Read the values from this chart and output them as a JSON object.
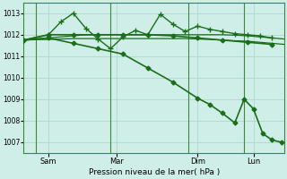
{
  "background_color": "#d0eee8",
  "grid_color": "#b0d8cc",
  "line_color": "#1a6e1a",
  "ylim": [
    1006.5,
    1013.5
  ],
  "yticks": [
    1007,
    1008,
    1009,
    1010,
    1011,
    1012,
    1013
  ],
  "xlabel": "Pression niveau de la mer( hPa )",
  "xtick_labels": [
    "Sam",
    "Mar",
    "Dim",
    "Lun"
  ],
  "xtick_positions": [
    8,
    30,
    56,
    74
  ],
  "vline_positions": [
    4,
    28,
    53,
    71
  ],
  "xlim": [
    0,
    84
  ],
  "series": [
    {
      "x": [
        0,
        4,
        8,
        12,
        16,
        20,
        24,
        28,
        32,
        36,
        40,
        44,
        48,
        52,
        56,
        60,
        64,
        68,
        72,
        76,
        80,
        84
      ],
      "y": [
        1011.75,
        1011.77,
        1011.78,
        1011.8,
        1011.82,
        1011.82,
        1011.82,
        1011.82,
        1011.82,
        1011.82,
        1011.82,
        1011.82,
        1011.82,
        1011.82,
        1011.8,
        1011.78,
        1011.75,
        1011.72,
        1011.7,
        1011.65,
        1011.6,
        1011.55
      ],
      "marker": null,
      "linewidth": 0.9,
      "linestyle": "-"
    },
    {
      "x": [
        0,
        4,
        8,
        12,
        16,
        20,
        24,
        28,
        32,
        36,
        40,
        44,
        48,
        52,
        56,
        60,
        64,
        68,
        72,
        76,
        80,
        84
      ],
      "y": [
        1011.75,
        1011.8,
        1011.85,
        1011.9,
        1011.95,
        1012.0,
        1012.0,
        1012.0,
        1012.0,
        1012.0,
        1012.0,
        1012.0,
        1012.0,
        1012.0,
        1012.0,
        1012.0,
        1012.0,
        1011.98,
        1011.95,
        1011.9,
        1011.85,
        1011.8
      ],
      "marker": null,
      "linewidth": 0.9,
      "linestyle": "-"
    },
    {
      "x": [
        0,
        8,
        16,
        24,
        32,
        40,
        48,
        56,
        64,
        72,
        80
      ],
      "y": [
        1011.75,
        1012.0,
        1012.0,
        1012.0,
        1012.0,
        1012.0,
        1011.95,
        1011.85,
        1011.75,
        1011.65,
        1011.55
      ],
      "marker": "D",
      "markersize": 2.5,
      "linewidth": 1.2,
      "linestyle": "-"
    },
    {
      "x": [
        0,
        8,
        12,
        16,
        20,
        24,
        28,
        32,
        36,
        40,
        44,
        48,
        52,
        56,
        60,
        64,
        68,
        72,
        76,
        80
      ],
      "y": [
        1011.75,
        1012.0,
        1012.6,
        1013.0,
        1012.3,
        1011.8,
        1011.35,
        1011.9,
        1012.2,
        1012.0,
        1012.95,
        1012.5,
        1012.15,
        1012.4,
        1012.25,
        1012.15,
        1012.05,
        1012.0,
        1011.95,
        1011.85
      ],
      "marker": "+",
      "markersize": 4,
      "linewidth": 1.0,
      "linestyle": "-"
    },
    {
      "x": [
        0,
        8,
        16,
        24,
        32,
        40,
        48,
        56,
        60,
        64,
        68,
        71,
        74,
        77,
        80,
        83
      ],
      "y": [
        1011.75,
        1011.85,
        1011.6,
        1011.35,
        1011.1,
        1010.45,
        1009.8,
        1009.05,
        1008.75,
        1008.35,
        1007.9,
        1009.0,
        1008.55,
        1007.4,
        1007.1,
        1007.0
      ],
      "marker": "D",
      "markersize": 2.5,
      "linewidth": 1.2,
      "linestyle": "-"
    }
  ]
}
